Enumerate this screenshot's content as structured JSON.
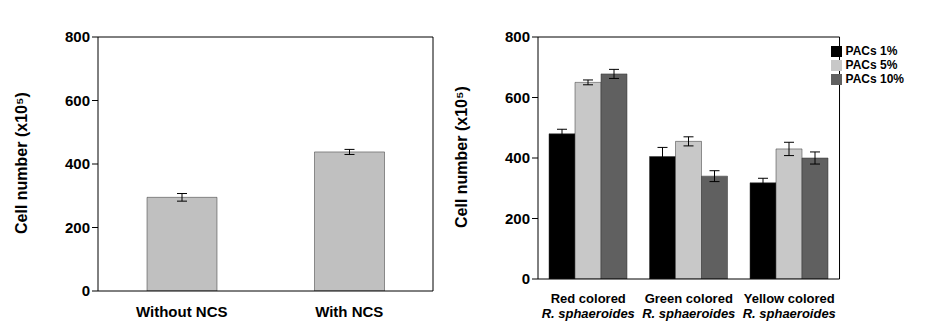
{
  "chart_data": [
    {
      "type": "bar",
      "categories": [
        "Without NCS",
        "With NCS"
      ],
      "values": [
        295,
        438
      ],
      "errors": [
        12,
        8
      ],
      "color": "#c0c0c0",
      "y_label": "Cell number (x10⁵)",
      "ylim": [
        0,
        800
      ],
      "yticks": [
        0,
        200,
        400,
        600,
        800
      ],
      "grid": false
    },
    {
      "type": "bar",
      "categories": [
        "Red colored R. sphaeroides",
        "Green colored R. sphaeroides",
        "Yellow colored R. sphaeroides"
      ],
      "series": [
        {
          "name": "PACs  1%",
          "color": "#000000",
          "values": [
            480,
            405,
            318
          ],
          "errors": [
            15,
            30,
            15
          ]
        },
        {
          "name": "PACs  5%",
          "color": "#c8c8c8",
          "values": [
            650,
            455,
            430
          ],
          "errors": [
            8,
            15,
            22
          ]
        },
        {
          "name": "PACs 10%",
          "color": "#606060",
          "values": [
            678,
            340,
            400
          ],
          "errors": [
            15,
            18,
            20
          ]
        }
      ],
      "y_label": "Cell number (x10⁵)",
      "ylim": [
        0,
        800
      ],
      "yticks": [
        0,
        200,
        400,
        600,
        800
      ],
      "legend": "upper right",
      "grid": false
    }
  ]
}
